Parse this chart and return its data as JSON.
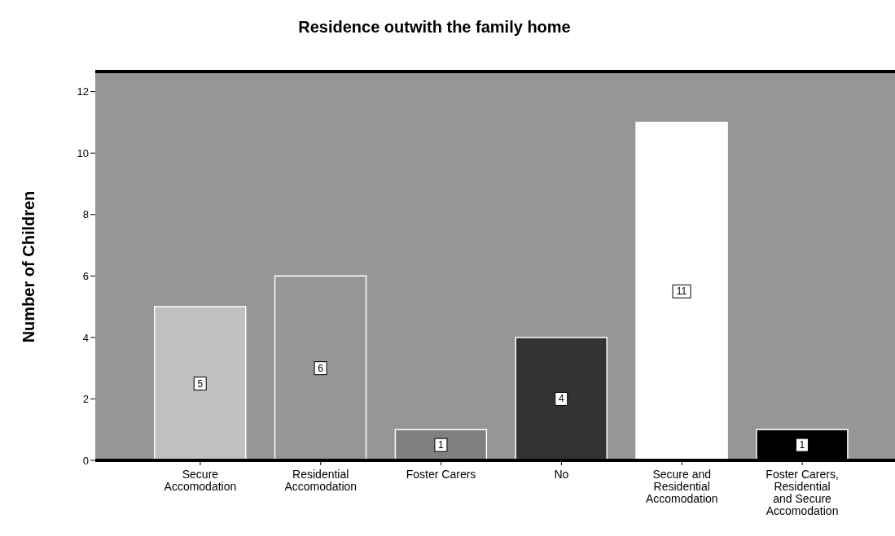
{
  "chart_data": {
    "type": "bar",
    "title": "Residence outwith the family home",
    "ylabel": "Number of Children",
    "categories": [
      "Secure Accomodation",
      "Residential Accomodation",
      "Foster Carers",
      "No",
      "Secure and Residential Accomodation",
      "Foster Carers, Residential and Secure Accomodation"
    ],
    "values": [
      5,
      6,
      1,
      4,
      11,
      1
    ],
    "colors": [
      "#c0c0c0",
      "#969696",
      "#808080",
      "#333333",
      "#ffffff",
      "#000000"
    ],
    "data_labels": true,
    "ylim": [
      0,
      12.6
    ],
    "yticks": [
      0,
      2,
      4,
      6,
      8,
      10,
      12
    ],
    "grid": false,
    "legend": false
  }
}
